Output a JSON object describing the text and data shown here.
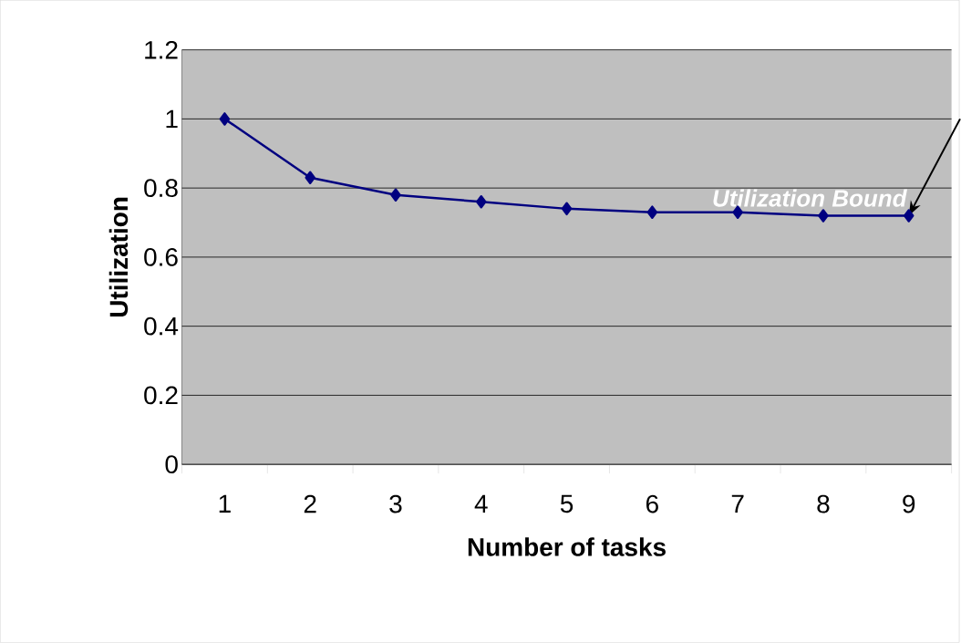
{
  "chart_data": {
    "type": "line",
    "xlabel": "Number of tasks",
    "ylabel": "Utilization",
    "categories": [
      "1",
      "2",
      "3",
      "4",
      "5",
      "6",
      "7",
      "8",
      "9"
    ],
    "series": [
      {
        "color": "#000080",
        "values": [
          1,
          0.83,
          0.78,
          0.76,
          0.74,
          0.73,
          0.73,
          0.72,
          0.72
        ]
      }
    ],
    "ylim": [
      0,
      1.2
    ],
    "yticks": [
      0,
      0.2,
      0.4,
      0.6,
      0.8,
      1,
      1.2
    ],
    "grid": "y",
    "marker": "diamond",
    "line_style": "solid",
    "annotations": [
      {
        "text": "Utilization Bound",
        "x": "9",
        "y": 0.72
      }
    ]
  }
}
